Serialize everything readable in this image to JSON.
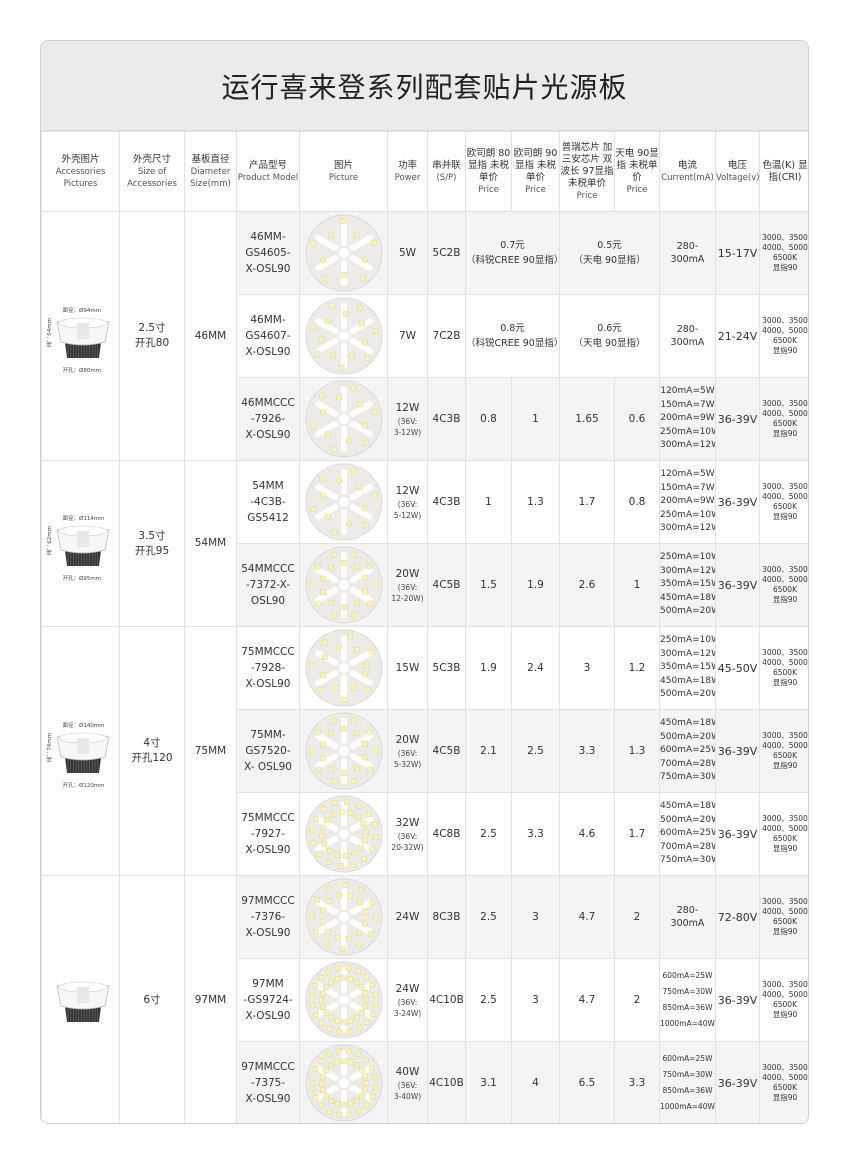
{
  "title": "运行喜来登系列配套贴片光源板",
  "headers": [
    {
      "cn": "外壳图片",
      "en": "Accessories Pictures"
    },
    {
      "cn": "外壳尺寸",
      "en": "Size of Accessories"
    },
    {
      "cn": "基板直径",
      "en": "Diameter Size(mm)"
    },
    {
      "cn": "产品型号",
      "en": "Product Model"
    },
    {
      "cn": "图片",
      "en": "Picture"
    },
    {
      "cn": "功率",
      "en": "Power"
    },
    {
      "cn": "串并联",
      "en": "(S/P)"
    },
    {
      "cn": "欧司朗 80显指 未税单价",
      "en": "Price"
    },
    {
      "cn": "欧司朗 90显指 未税单价",
      "en": "Price"
    },
    {
      "cn": "普瑞芯片 加三安芯片 双波长 97显指 未税单价",
      "en": "Price"
    },
    {
      "cn": "天电 90显指 未税单价",
      "en": "Price"
    },
    {
      "cn": "电流",
      "en": "Current(mA)"
    },
    {
      "cn": "电压",
      "en": "Voltage(v)"
    },
    {
      "cn": "色温(K) 显指(CRI)",
      "en": ""
    }
  ],
  "cct_text": [
    "3000、3500",
    "4000、5000",
    "6500K",
    "显指90"
  ],
  "groups": [
    {
      "size": [
        "2.5寸",
        "开孔80"
      ],
      "diameter": "46MM",
      "shell": {
        "face": "面径：Ø94mm",
        "hole": "开孔：Ø80mm",
        "height": "高：54mm"
      },
      "rows": [
        {
          "model": [
            "46MM-",
            "GS4605-",
            "X-OSL90"
          ],
          "power": "5W",
          "power_note": "",
          "sp": "5C2B",
          "merged": true,
          "price_a": [
            "0.7元",
            "（科锐CREE 90显指）"
          ],
          "price_b": [
            "0.5元",
            "（天电 90显指）"
          ],
          "current": [
            "280-300mA"
          ],
          "voltage": "15-17V",
          "leds": 10
        },
        {
          "model": [
            "46MM-",
            "GS4607-",
            "X-OSL90"
          ],
          "power": "7W",
          "power_note": "",
          "sp": "7C2B",
          "merged": true,
          "price_a": [
            "0.8元",
            "（科锐CREE 90显指）"
          ],
          "price_b": [
            "0.6元",
            "（天电 90显指）"
          ],
          "current": [
            "280-300mA"
          ],
          "voltage": "21-24V",
          "leds": 14
        },
        {
          "model": [
            "46MMCCC",
            "-7926-",
            "X-OSL90"
          ],
          "power": "12W",
          "power_note": [
            "(36V:",
            "3-12W)"
          ],
          "sp": "4C3B",
          "prices": [
            "0.8",
            "1",
            "1.65",
            "0.6"
          ],
          "current": [
            "120mA=5W",
            "150mA=7W",
            "200mA=9W",
            "250mA=10W",
            "300mA=12W"
          ],
          "voltage": "36-39V",
          "leds": 12
        }
      ]
    },
    {
      "size": [
        "3.5寸",
        "开孔95"
      ],
      "diameter": "54MM",
      "shell": {
        "face": "面径：Ø114mm",
        "hole": "开孔：Ø95mm",
        "height": "高：62mm"
      },
      "rows": [
        {
          "model": [
            "54MM",
            "-4C3B-",
            "GS5412"
          ],
          "power": "12W",
          "power_note": [
            "(36V:",
            "5-12W)"
          ],
          "sp": "4C3B",
          "prices": [
            "1",
            "1.3",
            "1.7",
            "0.8"
          ],
          "current": [
            "120mA=5W",
            "150mA=7W",
            "200mA=9W",
            "250mA=10W",
            "300mA=12W"
          ],
          "voltage": "36-39V",
          "leds": 12
        },
        {
          "model": [
            "54MMCCC",
            "-7372-X-",
            "OSL90"
          ],
          "power": "20W",
          "power_note": [
            "(36V:",
            "12-20W)"
          ],
          "sp": "4C5B",
          "prices": [
            "1.5",
            "1.9",
            "2.6",
            "1"
          ],
          "current": [
            "250mA=10W",
            "300mA=12W",
            "350mA=15W",
            "450mA=18W",
            "500mA=20W"
          ],
          "voltage": "36-39V",
          "leds": 20
        }
      ]
    },
    {
      "size": [
        "4寸",
        "开孔120"
      ],
      "diameter": "75MM",
      "shell": {
        "face": "面径：Ø140mm",
        "hole": "开孔：Ø120mm",
        "height": "高：74mm"
      },
      "rows": [
        {
          "model": [
            "75MMCCC",
            "-7928-",
            "X-OSL90"
          ],
          "power": "15W",
          "power_note": "",
          "sp": "5C3B",
          "prices": [
            "1.9",
            "2.4",
            "3",
            "1.2"
          ],
          "current": [
            "250mA=10W",
            "300mA=12W",
            "350mA=15W",
            "450mA=18W",
            "500mA=20W"
          ],
          "voltage": "45-50V",
          "leds": 15
        },
        {
          "model": [
            "75MM-",
            "GS7520-",
            "X- OSL90"
          ],
          "power": "20W",
          "power_note": [
            "(36V:",
            "5-32W)"
          ],
          "sp": "4C5B",
          "prices": [
            "2.1",
            "2.5",
            "3.3",
            "1.3"
          ],
          "current": [
            "450mA=18W",
            "500mA=20W",
            "600mA=25W",
            "700mA=28W",
            "750mA=30W"
          ],
          "voltage": "36-39V",
          "leds": 20
        },
        {
          "model": [
            "75MMCCC",
            "-7927-",
            "X-OSL90"
          ],
          "power": "32W",
          "power_note": [
            "(36V:",
            "20-32W)"
          ],
          "sp": "4C8B",
          "prices": [
            "2.5",
            "3.3",
            "4.6",
            "1.7"
          ],
          "current": [
            "450mA=18W",
            "500mA=20W",
            "600mA=25W",
            "700mA=28W",
            "750mA=30W"
          ],
          "voltage": "36-39V",
          "leds": 32
        }
      ]
    },
    {
      "size": [
        "6寸"
      ],
      "diameter": "97MM",
      "shell": {
        "face": "",
        "hole": "",
        "height": ""
      },
      "rows": [
        {
          "model": [
            "97MMCCC",
            "-7376-",
            "X-OSL90"
          ],
          "power": "24W",
          "power_note": "",
          "sp": "8C3B",
          "prices": [
            "2.5",
            "3",
            "4.7",
            "2"
          ],
          "current": [
            "280-300mA"
          ],
          "voltage": "72-80V",
          "leds": 24
        },
        {
          "model": [
            "97MM",
            "-GS9724-",
            "X-OSL90"
          ],
          "power": "24W",
          "power_note": [
            "(36V:",
            "3-24W)"
          ],
          "sp": "4C10B",
          "prices": [
            "2.5",
            "3",
            "4.7",
            "2"
          ],
          "current": [
            "600mA=25W",
            "750mA=30W",
            "850mA=36W",
            "1000mA=40W"
          ],
          "voltage": "36-39V",
          "leds": 40
        },
        {
          "model": [
            "97MMCCC",
            "-7375-",
            "X-OSL90"
          ],
          "power": "40W",
          "power_note": [
            "(36V:",
            "3-40W)"
          ],
          "sp": "4C10B",
          "prices": [
            "3.1",
            "4",
            "6.5",
            "3.3"
          ],
          "current": [
            "600mA=25W",
            "750mA=30W",
            "850mA=36W",
            "1000mA=40W"
          ],
          "voltage": "36-39V",
          "leds": 40
        }
      ]
    }
  ]
}
